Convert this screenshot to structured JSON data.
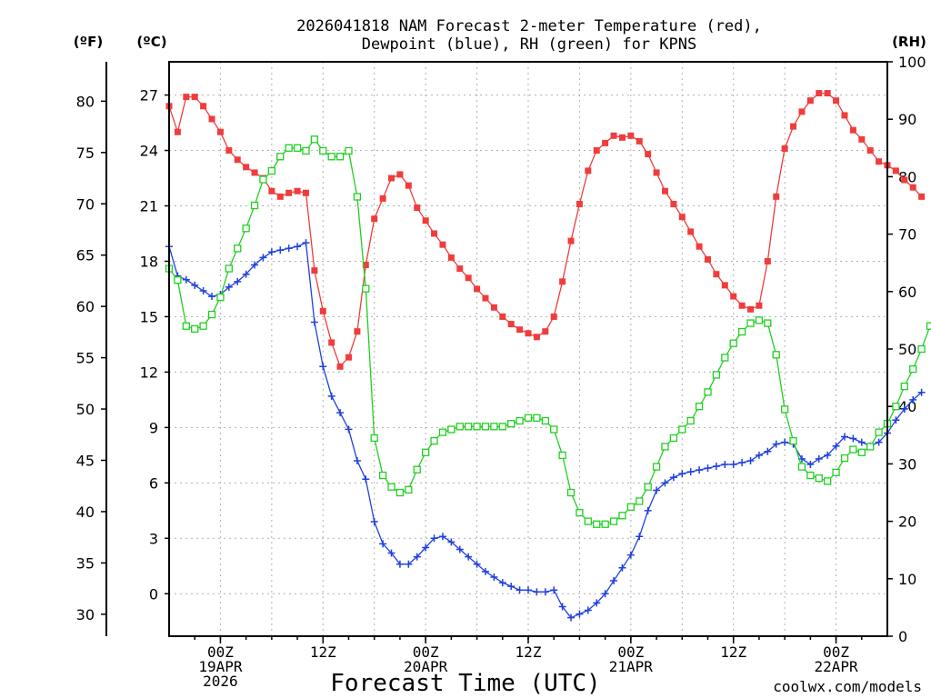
{
  "chart_data": {
    "type": "line",
    "title_line1": "2026041818 NAM Forecast 2-meter Temperature (red),",
    "title_line2": "Dewpoint (blue), RH (green) for KPNS",
    "left_outer_unit": "(ºF)",
    "left_inner_unit": "(ºC)",
    "right_unit": "(RH)",
    "xlabel": "Forecast Time (UTC)",
    "credit": "coolwx.com/models",
    "time_axis": "hours since 2026-04-18 18Z",
    "xlim": [
      0,
      84
    ],
    "x_ticks": [
      {
        "x": 6,
        "lines": [
          "00Z",
          "19APR",
          "2026"
        ]
      },
      {
        "x": 18,
        "lines": [
          "12Z"
        ]
      },
      {
        "x": 30,
        "lines": [
          "00Z",
          "20APR"
        ]
      },
      {
        "x": 42,
        "lines": [
          "12Z"
        ]
      },
      {
        "x": 54,
        "lines": [
          "00Z",
          "21APR"
        ]
      },
      {
        "x": 66,
        "lines": [
          "12Z"
        ]
      },
      {
        "x": 78,
        "lines": [
          "00Z",
          "22APR"
        ]
      }
    ],
    "celsius_axis": {
      "ylim": [
        -2.3,
        28.8
      ],
      "ticks": [
        0,
        3,
        6,
        9,
        12,
        15,
        18,
        21,
        24,
        27
      ]
    },
    "fahrenheit_axis": {
      "ticks": [
        30,
        35,
        40,
        45,
        50,
        55,
        60,
        65,
        70,
        75,
        80
      ]
    },
    "rh_axis": {
      "ylim": [
        0,
        100
      ],
      "ticks": [
        0,
        10,
        20,
        30,
        40,
        50,
        60,
        70,
        80,
        90,
        100
      ]
    },
    "colors": {
      "temperature": "#f03c3c",
      "dewpoint": "#2040e0",
      "rh": "#20d020",
      "credit": "#e04040"
    },
    "series": [
      {
        "name": "Temperature",
        "axis": "celsius",
        "marker": "filled-square",
        "values": [
          26.4,
          25.0,
          26.9,
          26.9,
          26.4,
          25.7,
          25.0,
          24.0,
          23.5,
          23.1,
          22.8,
          22.5,
          21.8,
          21.5,
          21.7,
          21.8,
          21.7,
          17.5,
          15.3,
          13.6,
          12.3,
          12.8,
          14.2,
          17.8,
          20.3,
          21.4,
          22.5,
          22.7,
          22.1,
          20.9,
          20.2,
          19.5,
          18.9,
          18.2,
          17.6,
          17.1,
          16.5,
          16.0,
          15.5,
          15.0,
          14.6,
          14.3,
          14.1,
          13.9,
          14.2,
          15.0,
          16.9,
          19.1,
          21.1,
          22.9,
          24.0,
          24.4,
          24.8,
          24.7,
          24.8,
          24.5,
          23.8,
          22.8,
          21.8,
          21.1,
          20.4,
          19.6,
          18.8,
          18.1,
          17.3,
          16.7,
          16.1,
          15.6,
          15.4,
          15.6,
          18.0,
          21.5,
          24.1,
          25.3,
          26.1,
          26.7,
          27.1,
          27.1,
          26.7,
          25.9,
          25.1,
          24.6,
          24.0,
          23.4,
          23.2,
          22.9,
          22.4,
          22.0,
          21.5
        ]
      },
      {
        "name": "Dewpoint",
        "axis": "celsius",
        "marker": "plus",
        "values": [
          18.8,
          17.2,
          17.0,
          16.7,
          16.4,
          16.1,
          16.2,
          16.6,
          16.9,
          17.3,
          17.8,
          18.2,
          18.5,
          18.6,
          18.7,
          18.8,
          19.0,
          14.7,
          12.3,
          10.7,
          9.8,
          8.9,
          7.2,
          6.2,
          3.9,
          2.7,
          2.2,
          1.6,
          1.6,
          2.0,
          2.5,
          3.0,
          3.1,
          2.8,
          2.4,
          2.0,
          1.6,
          1.2,
          0.9,
          0.6,
          0.4,
          0.2,
          0.2,
          0.1,
          0.1,
          0.2,
          -0.7,
          -1.3,
          -1.1,
          -0.9,
          -0.5,
          0.0,
          0.7,
          1.4,
          2.1,
          3.1,
          4.5,
          5.6,
          6.0,
          6.3,
          6.5,
          6.6,
          6.7,
          6.8,
          6.9,
          7.0,
          7.0,
          7.1,
          7.2,
          7.5,
          7.7,
          8.1,
          8.2,
          8.1,
          7.3,
          7.0,
          7.3,
          7.5,
          8.0,
          8.5,
          8.4,
          8.2,
          8.0,
          8.2,
          8.7,
          9.4,
          10.0,
          10.5,
          10.9
        ]
      },
      {
        "name": "RH",
        "axis": "rh",
        "marker": "open-square",
        "values": [
          64,
          62,
          54,
          53.5,
          54,
          56,
          59,
          64,
          67.5,
          71,
          75,
          79.5,
          81,
          83.5,
          85,
          85,
          84.5,
          86.5,
          84.5,
          83.5,
          83.5,
          84.5,
          76.5,
          60.5,
          34.5,
          28,
          26,
          25,
          25.5,
          29,
          32,
          34,
          35.5,
          36,
          36.5,
          36.5,
          36.5,
          36.5,
          36.5,
          36.5,
          37,
          37.5,
          38,
          38,
          37.5,
          36,
          31.5,
          25,
          21.5,
          20,
          19.5,
          19.5,
          20,
          21,
          22.5,
          23.5,
          26,
          29.5,
          33,
          34.5,
          36,
          37.5,
          40,
          42.5,
          45.5,
          48.5,
          51,
          53,
          54.5,
          55,
          54.5,
          49,
          39.5,
          34,
          29.5,
          28,
          27.5,
          27,
          28.5,
          31,
          32.5,
          32,
          33,
          35.5,
          37,
          40,
          43.5,
          46.5,
          50,
          54
        ]
      }
    ]
  }
}
